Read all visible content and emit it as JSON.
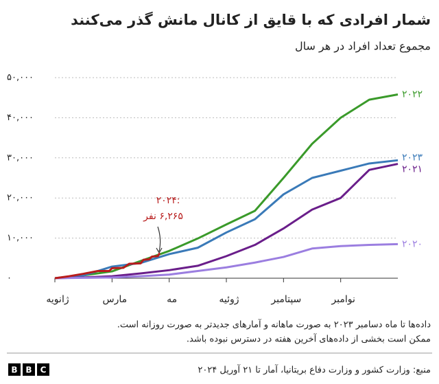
{
  "chart_data": {
    "type": "line",
    "title": "شمار افرادی که با قایق از کانال مانش گذر می‌کنند",
    "subtitle": "مجموع تعداد افراد در هر سال",
    "xlim": [
      0,
      12
    ],
    "xticks": [
      {
        "value": 0,
        "label": "ژانویه"
      },
      {
        "value": 2,
        "label": "مارس"
      },
      {
        "value": 4,
        "label": "مه"
      },
      {
        "value": 6,
        "label": "ژوئیه"
      },
      {
        "value": 8,
        "label": "سپتامبر"
      },
      {
        "value": 10,
        "label": "نوامبر"
      }
    ],
    "ylim": [
      0,
      50000
    ],
    "yticks": [
      {
        "value": 0,
        "label": "۰"
      },
      {
        "value": 10000,
        "label": "۱۰,۰۰۰"
      },
      {
        "value": 20000,
        "label": "۲۰,۰۰۰"
      },
      {
        "value": 30000,
        "label": "۳۰,۰۰۰"
      },
      {
        "value": 40000,
        "label": "۴۰,۰۰۰"
      },
      {
        "value": 50000,
        "label": "۵۰,۰۰۰"
      }
    ],
    "grid": true,
    "series": [
      {
        "name": "۲۰۲۲",
        "color": "#3a9a2a",
        "x": [
          0,
          1,
          2,
          3,
          4,
          5,
          6,
          7,
          8,
          9,
          10,
          11,
          12
        ],
        "values": [
          0,
          700,
          1700,
          4300,
          6800,
          9900,
          13400,
          16800,
          25000,
          33500,
          40000,
          44500,
          45800
        ]
      },
      {
        "name": "۲۰۲۳",
        "color": "#3a7ab8",
        "x": [
          0,
          1,
          2,
          3,
          4,
          5,
          6,
          7,
          8,
          9,
          10,
          11,
          12
        ],
        "values": [
          0,
          700,
          2900,
          3800,
          6000,
          7600,
          11400,
          14700,
          20900,
          25000,
          26800,
          28600,
          29400
        ]
      },
      {
        "name": "۲۰۲۱",
        "color": "#6a1e8a",
        "x": [
          0,
          1,
          2,
          3,
          4,
          5,
          6,
          7,
          8,
          9,
          10,
          11,
          12
        ],
        "values": [
          0,
          200,
          500,
          1200,
          2000,
          3100,
          5500,
          8300,
          12400,
          17100,
          20000,
          27000,
          28500
        ]
      },
      {
        "name": "۲۰۲۰",
        "color": "#9b7ee0",
        "x": [
          0,
          1,
          2,
          3,
          4,
          5,
          6,
          7,
          8,
          9,
          10,
          11,
          12
        ],
        "values": [
          0,
          100,
          200,
          500,
          900,
          1800,
          2700,
          3900,
          5300,
          7400,
          8000,
          8300,
          8500
        ]
      },
      {
        "name": "۲۰۲۴",
        "color": "#b81c1c",
        "x": [
          0,
          0.5,
          1,
          1.5,
          1.9,
          2,
          2.4,
          2.6,
          3,
          3.1,
          3.3,
          3.4,
          3.6,
          3.67
        ],
        "values": [
          0,
          500,
          1100,
          1800,
          1800,
          2500,
          2600,
          3600,
          3700,
          4600,
          4700,
          5400,
          5500,
          6265
        ]
      }
    ],
    "annotations": [
      "۲۰۲۴:",
      "۶,۲۶۵ نفر"
    ],
    "notes": [
      "داده‌ها تا ماه دسامبر ۲۰۲۳ به صورت ماهانه و آمارهای جدیدتر به صورت روزانه است.",
      "ممکن است بخشی از داده‌های آخرین هفته در دسترس نبوده باشد."
    ],
    "source": "منبع: وزارت کشور و وزارت دفاع بریتانیا، آمار تا ۲۱ آوریل ۲۰۲۴",
    "logo": [
      "B",
      "B",
      "C"
    ]
  }
}
